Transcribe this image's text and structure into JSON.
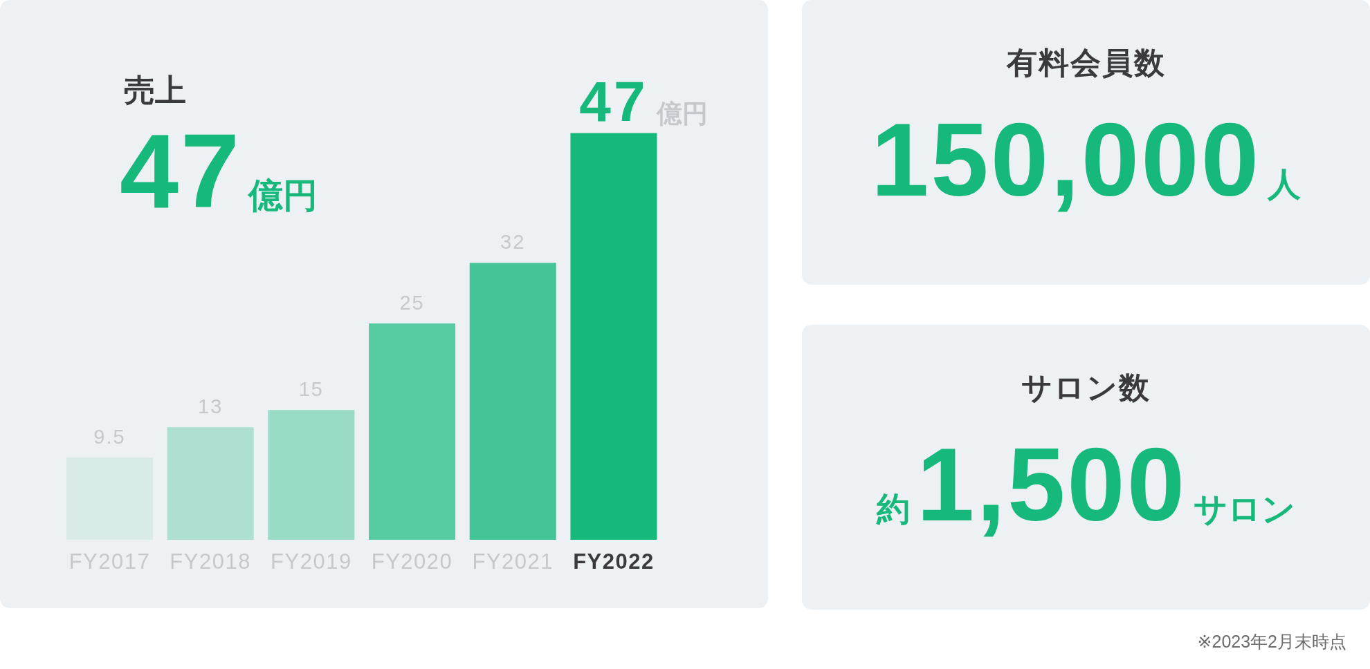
{
  "chart_data": [
    {
      "type": "bar",
      "title": "売上",
      "categories": [
        "FY2017",
        "FY2018",
        "FY2019",
        "FY2020",
        "FY2021",
        "FY2022"
      ],
      "values": [
        9.5,
        13,
        15,
        25,
        32,
        47
      ],
      "colors": [
        "#d9ebe9",
        "#ade0d1",
        "#9adbc5",
        "#57cba1",
        "#43c598",
        "#16b87b"
      ],
      "data_labels": true,
      "tick_labels": "x",
      "annotations": [
        "47",
        "億円",
        {
          "text": "億円",
          "x": "FY2022",
          "y": 47
        }
      ]
    },
    {
      "type": "other",
      "title": "有料会員数",
      "annotations": [
        "150,000",
        "人"
      ]
    },
    {
      "type": "other",
      "title": "サロン数",
      "annotations": [
        "約",
        "1,500",
        "サロン",
        "※2023年2月末時点"
      ]
    }
  ]
}
